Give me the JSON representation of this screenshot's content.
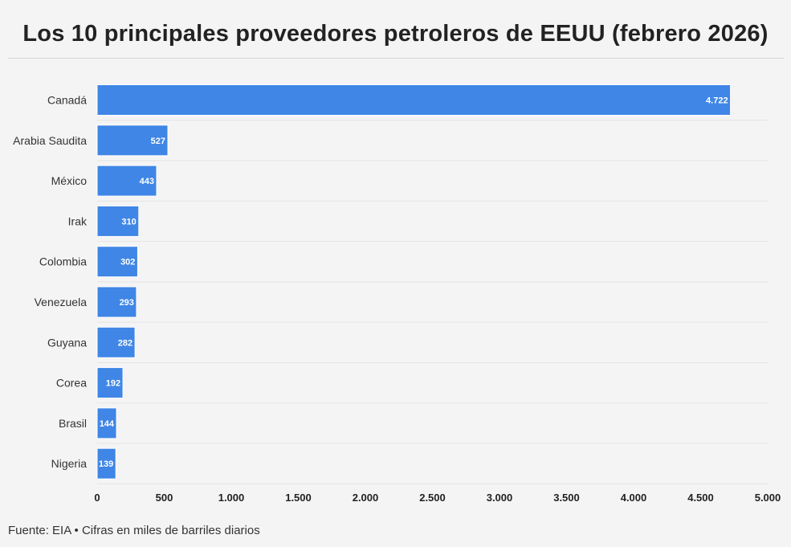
{
  "title": "Los 10 principales proveedores petroleros de EEUU (febrero 2026)",
  "footer": "Fuente: EIA • Cifras en miles de barriles diarios",
  "colors": {
    "bar": "#3f86e6",
    "bar_stroke": "#ffffff",
    "grid": "#e4e4e4",
    "background": "#f4f4f5"
  },
  "chart_data": {
    "type": "bar",
    "orientation": "horizontal",
    "categories": [
      "Canadá",
      "Arabia Saudita",
      "México",
      "Irak",
      "Colombia",
      "Venezuela",
      "Guyana",
      "Corea",
      "Brasil",
      "Nigeria"
    ],
    "values": [
      4722,
      527,
      443,
      310,
      302,
      293,
      282,
      192,
      144,
      139
    ],
    "value_labels": [
      "4.722",
      "527",
      "443",
      "310",
      "302",
      "293",
      "282",
      "192",
      "144",
      "139"
    ],
    "xlim": [
      0,
      5000
    ],
    "xticks": [
      0,
      500,
      1000,
      1500,
      2000,
      2500,
      3000,
      3500,
      4000,
      4500,
      5000
    ],
    "xtick_labels": [
      "0",
      "500",
      "1.000",
      "1.500",
      "2.000",
      "2.500",
      "3.000",
      "3.500",
      "4.000",
      "4.500",
      "5.000"
    ],
    "grid": true,
    "legend": "none",
    "xlabel": "",
    "ylabel": ""
  }
}
